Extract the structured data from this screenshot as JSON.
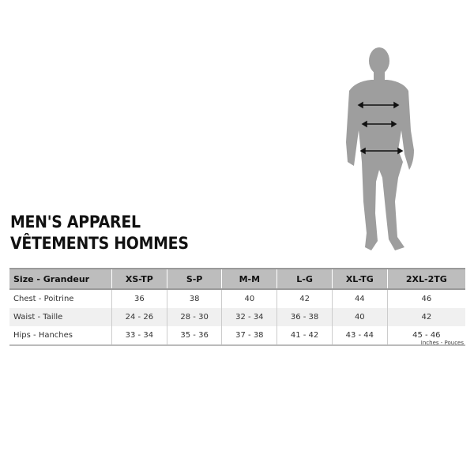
{
  "title_line1": "MEN'S APPAREL",
  "title_line2": "VÊTEMENTS HOMMES",
  "table": {
    "headers": [
      "Size - Grandeur",
      "XS-TP",
      "S-P",
      "M-M",
      "L-G",
      "XL-TG",
      "2XL-2TG"
    ],
    "rows": [
      [
        "Chest - Poitrine",
        "36",
        "38",
        "40",
        "42",
        "44",
        "46"
      ],
      [
        "Waist - Taille",
        "24 - 26",
        "28 - 30",
        "32 - 34",
        "36 - 38",
        "40",
        "42"
      ],
      [
        "Hips - Hanches",
        "33 - 34",
        "35 - 36",
        "37 - 38",
        "41 - 42",
        "43 - 44",
        "45 - 46"
      ]
    ]
  },
  "units_note": "Inches - Pouces",
  "figure": {
    "icon": "male-silhouette-with-measurement-arrows",
    "color": "#9e9e9e"
  }
}
